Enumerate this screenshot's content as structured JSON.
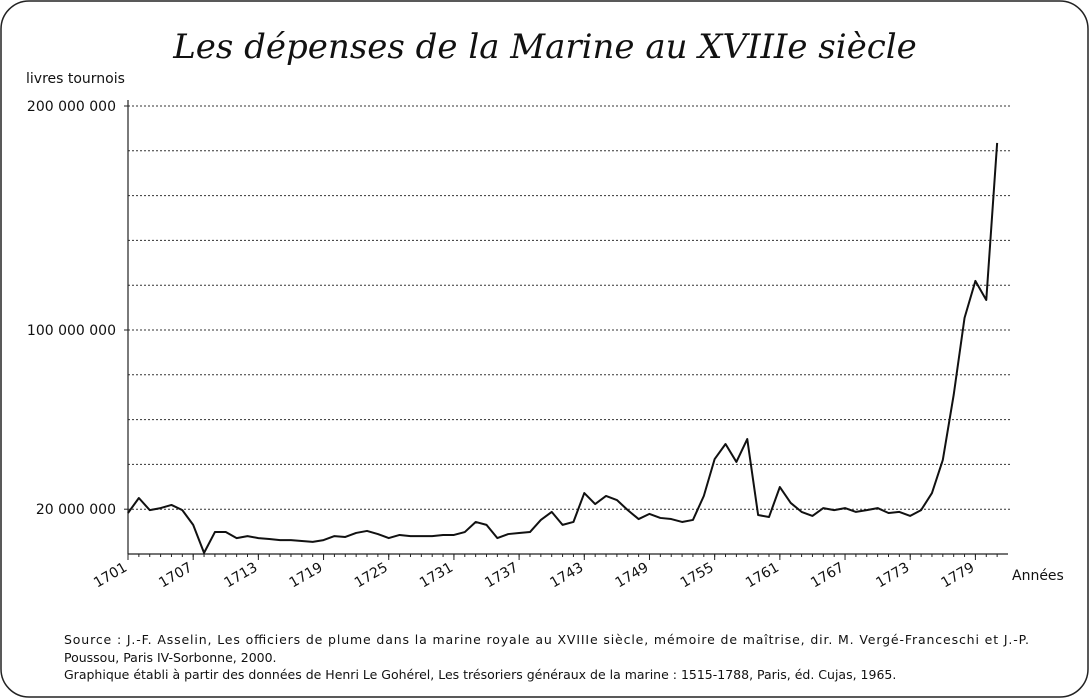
{
  "chart_data": {
    "type": "line",
    "title": "Les dépenses de la Marine au XVIIIe siècle",
    "y_label": "livres tournois",
    "x_label": "Années",
    "x": [
      1701,
      1702,
      1703,
      1704,
      1705,
      1706,
      1707,
      1708,
      1709,
      1710,
      1711,
      1712,
      1713,
      1714,
      1715,
      1716,
      1717,
      1718,
      1719,
      1720,
      1721,
      1722,
      1723,
      1724,
      1725,
      1726,
      1727,
      1728,
      1729,
      1730,
      1731,
      1732,
      1733,
      1734,
      1735,
      1736,
      1737,
      1738,
      1739,
      1740,
      1741,
      1742,
      1743,
      1744,
      1745,
      1746,
      1747,
      1748,
      1749,
      1750,
      1751,
      1752,
      1753,
      1754,
      1755,
      1756,
      1757,
      1758,
      1759,
      1760,
      1761,
      1762,
      1763,
      1764,
      1765,
      1766,
      1767,
      1768,
      1769,
      1770,
      1771,
      1772,
      1773,
      1774,
      1775,
      1776,
      1777,
      1778,
      1779,
      1780,
      1781
    ],
    "series": [
      {
        "name": "livres tournois",
        "color": "#111111",
        "values": [
          18300000,
          25000000,
          19600000,
          20500000,
          21900000,
          19600000,
          13000000,
          500000,
          9800000,
          9800000,
          7100000,
          8000000,
          7100000,
          6700000,
          6200000,
          6200000,
          5800000,
          5400000,
          6200000,
          8000000,
          7600000,
          9400000,
          10300000,
          8900000,
          7100000,
          8500000,
          8000000,
          8000000,
          8000000,
          8500000,
          8500000,
          9800000,
          14300000,
          13000000,
          7100000,
          8900000,
          9400000,
          9800000,
          15200000,
          18800000,
          13000000,
          14300000,
          27200000,
          22300000,
          25900000,
          24100000,
          19600000,
          15600000,
          17900000,
          16100000,
          15600000,
          14300000,
          15200000,
          25900000,
          42400000,
          49100000,
          41100000,
          51300000,
          17400000,
          16500000,
          29900000,
          22800000,
          18800000,
          17000000,
          20500000,
          19600000,
          20500000,
          18800000,
          19600000,
          20500000,
          18300000,
          18800000,
          17000000,
          19600000,
          27200000,
          42000000,
          71000000,
          105400000,
          121900000,
          113400000,
          183500000
        ]
      }
    ],
    "xlim": [
      1701,
      1782
    ],
    "xticks": [
      1701,
      1707,
      1713,
      1719,
      1725,
      1731,
      1737,
      1743,
      1749,
      1755,
      1761,
      1767,
      1773,
      1779
    ],
    "ylim": [
      0,
      200000000
    ],
    "yticks": [
      {
        "value": 20000000,
        "label": "20 000 000"
      },
      {
        "value": 100000000,
        "label": "100 000 000"
      },
      {
        "value": 200000000,
        "label": "200 000 000"
      }
    ],
    "ygrid": [
      20000000,
      40000000,
      60000000,
      80000000,
      100000000,
      120000000,
      140000000,
      160000000,
      180000000,
      200000000
    ],
    "note": [
      "Source : J.-F. Asselin, Les officiers de plume dans la marine royale au XVIIIe siècle, mémoire de maîtrise, dir. M. Vergé-Franceschi et J.-P.",
      "Poussou, Paris IV-Sorbonne, 2000.",
      "Graphique établi à partir des données de Henri Le Gohérel, Les trésoriers généraux de la marine : 1515-1788, Paris, éd. Cujas, 1965."
    ]
  }
}
